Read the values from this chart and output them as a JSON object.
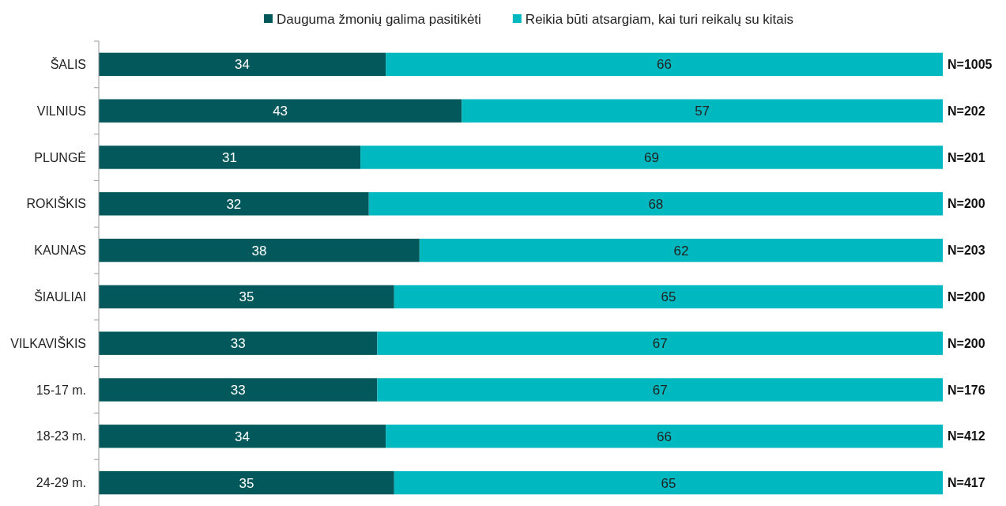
{
  "chart_data": {
    "type": "bar",
    "orientation": "horizontal",
    "stacked": true,
    "data_labels": true,
    "legend": "top",
    "categories": [
      "ŠALIS",
      "VILNIUS",
      "PLUNGĖ",
      "ROKIŠKIS",
      "KAUNAS",
      "ŠIAULIAI",
      "VILKAVIŠKIS",
      "15-17 m.",
      "18-23 m.",
      "24-29 m."
    ],
    "series": [
      {
        "name": "Dauguma žmonių galima pasitikėti",
        "color": "#03585c",
        "values": [
          34,
          43,
          31,
          32,
          38,
          35,
          33,
          33,
          34,
          35
        ]
      },
      {
        "name": "Reikia būti atsargiam, kai turi reikalų su kitais",
        "color": "#00b8bf",
        "values": [
          66,
          57,
          69,
          68,
          62,
          65,
          67,
          67,
          66,
          65
        ]
      }
    ],
    "annotations": [
      "N=1005",
      "N=202",
      "N=201",
      "N=200",
      "N=203",
      "N=200",
      "N=200",
      "N=176",
      "N=412",
      "N=417"
    ]
  }
}
